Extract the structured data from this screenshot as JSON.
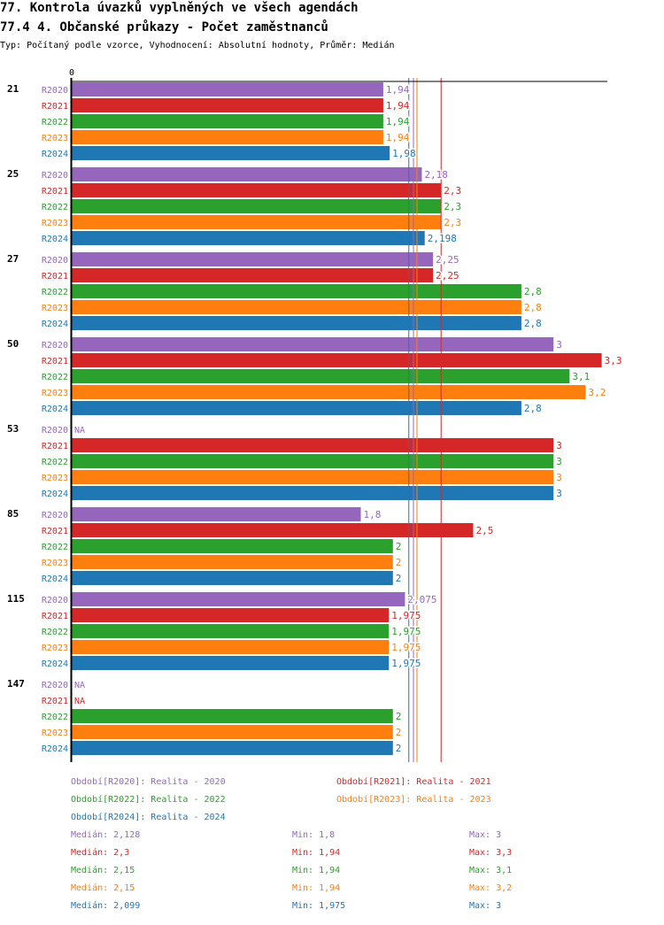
{
  "chart_data": {
    "type": "bar",
    "orientation": "horizontal",
    "title": "77. Kontrola úvazků vyplněných ve všech agendách",
    "subtitle": "77.4 4. Občanské průkazy - Počet zaměstnanců",
    "description": "Typ: Počítaný podle vzorce, Vyhodnocení: Absolutní hodnoty, Průměr: Medián",
    "x_tick_labels": [
      "0"
    ],
    "xlim": [
      0,
      3.34
    ],
    "na_label": "NA",
    "categories": [
      "21",
      "25",
      "27",
      "50",
      "53",
      "85",
      "115",
      "147"
    ],
    "series": [
      {
        "name": "R2020",
        "color": "#9467bd",
        "values": [
          1.94,
          2.18,
          2.25,
          3,
          null,
          1.8,
          2.075,
          null
        ]
      },
      {
        "name": "R2021",
        "color": "#d62728",
        "values": [
          1.94,
          2.3,
          2.25,
          3.3,
          3,
          2.5,
          1.975,
          null
        ]
      },
      {
        "name": "R2022",
        "color": "#2ca02c",
        "values": [
          1.94,
          2.3,
          2.8,
          3.1,
          3,
          2,
          1.975,
          2
        ]
      },
      {
        "name": "R2023",
        "color": "#ff7f0e",
        "values": [
          1.94,
          2.3,
          2.8,
          3.2,
          3,
          2,
          1.975,
          2
        ]
      },
      {
        "name": "R2024",
        "color": "#1f77b4",
        "values": [
          1.98,
          2.198,
          2.8,
          2.8,
          3,
          2,
          1.975,
          2
        ]
      }
    ],
    "legend": [
      "Období[R2020]: Realita - 2020",
      "Období[R2021]: Realita - 2021",
      "Období[R2022]: Realita - 2022",
      "Období[R2023]: Realita - 2023",
      "Období[R2024]: Realita - 2024"
    ],
    "stats": [
      {
        "median": "Medián: 2,128",
        "min": "Min: 1,8",
        "max": "Max: 3",
        "median_value": 2.128
      },
      {
        "median": "Medián: 2,3",
        "min": "Min: 1,94",
        "max": "Max: 3,3",
        "median_value": 2.3
      },
      {
        "median": "Medián: 2,15",
        "min": "Min: 1,94",
        "max": "Max: 3,1",
        "median_value": 2.15
      },
      {
        "median": "Medián: 2,15",
        "min": "Min: 1,94",
        "max": "Max: 3,2",
        "median_value": 2.15
      },
      {
        "median": "Medián: 2,099",
        "min": "Min: 1,975",
        "max": "Max: 3",
        "median_value": 2.099
      }
    ]
  }
}
